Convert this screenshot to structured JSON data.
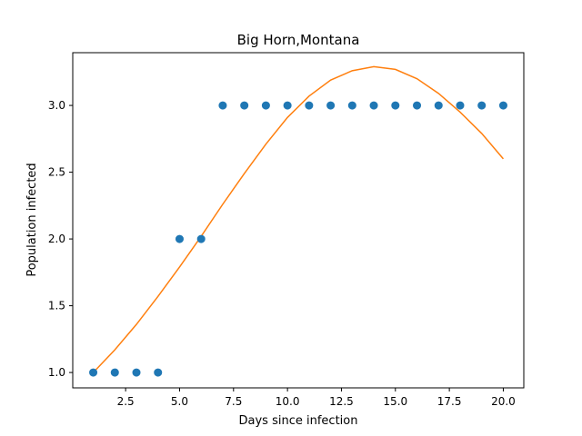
{
  "chart_data": {
    "type": "scatter",
    "title": "Big Horn,Montana",
    "xlabel": "Days since infection",
    "ylabel": "Population infected",
    "xlim": [
      0.05,
      20.95
    ],
    "ylim": [
      0.885,
      3.395
    ],
    "xticks": [
      2.5,
      5.0,
      7.5,
      10.0,
      12.5,
      15.0,
      17.5,
      20.0
    ],
    "xtick_labels": [
      "2.5",
      "5.0",
      "7.5",
      "10.0",
      "12.5",
      "15.0",
      "17.5",
      "20.0"
    ],
    "yticks": [
      1.0,
      1.5,
      2.0,
      2.5,
      3.0
    ],
    "ytick_labels": [
      "1.0",
      "1.5",
      "2.0",
      "2.5",
      "3.0"
    ],
    "grid": false,
    "legend": "none",
    "series": [
      {
        "kind": "scatter",
        "color": "#1f77b4",
        "x": [
          1,
          2,
          3,
          4,
          5,
          6,
          7,
          8,
          9,
          10,
          11,
          12,
          13,
          14,
          15,
          16,
          17,
          18,
          19,
          20
        ],
        "y": [
          1,
          1,
          1,
          1,
          2,
          2,
          3,
          3,
          3,
          3,
          3,
          3,
          3,
          3,
          3,
          3,
          3,
          3,
          3,
          3
        ]
      },
      {
        "kind": "line",
        "color": "#ff7f0e",
        "x": [
          1,
          2,
          3,
          4,
          5,
          6,
          7,
          8,
          9,
          10,
          11,
          12,
          13,
          14,
          15,
          16,
          17,
          18,
          19,
          20
        ],
        "y": [
          1.0,
          1.17,
          1.36,
          1.57,
          1.79,
          2.02,
          2.26,
          2.49,
          2.71,
          2.91,
          3.07,
          3.19,
          3.26,
          3.29,
          3.27,
          3.2,
          3.09,
          2.95,
          2.79,
          2.6
        ]
      }
    ]
  }
}
